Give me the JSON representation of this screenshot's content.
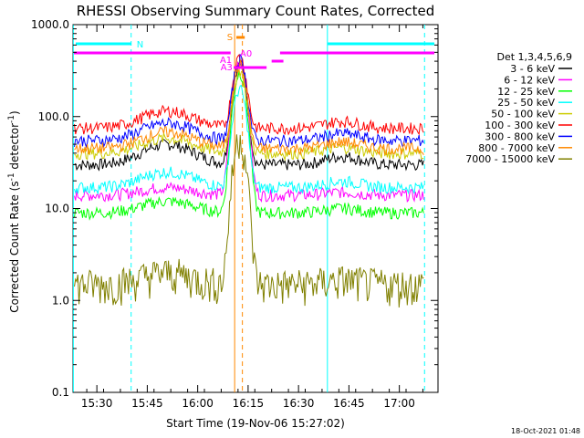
{
  "chart_data": {
    "type": "line",
    "title": "RHESSI Observing Summary Count Rates, Corrected",
    "xlabel": "Start Time (19-Nov-06 15:27:02)",
    "ylabel_main": "Corrected Count Rate (s",
    "ylabel_exp": "-1",
    "ylabel_end": " detector",
    "ylabel_exp2": "-1",
    "ylabel_close": ")",
    "yscale": "log",
    "ylim": [
      0.1,
      1000.0
    ],
    "xlim_minutes": [
      -4.1,
      104.5
    ],
    "x_start_time": "15:27:02",
    "ytick_labels": [
      "0.1",
      "1.0",
      "10.0",
      "100.0",
      "1000.0"
    ],
    "ytick_values": [
      0.1,
      1.0,
      10.0,
      100.0,
      1000.0
    ],
    "xtick_labels": [
      "15:30",
      "15:45",
      "16:00",
      "16:15",
      "16:30",
      "16:45",
      "17:00"
    ],
    "xtick_values_min": [
      3,
      18,
      33,
      48,
      63,
      78,
      93
    ],
    "legend_header": "Det 1,3,4,5,6,9",
    "series": [
      {
        "name": "3 - 6 keV",
        "color": "#000000",
        "base": 30,
        "bump": 50,
        "peak": 380
      },
      {
        "name": "6 - 12 keV",
        "color": "#ff00ff",
        "base": 14,
        "bump": 17,
        "peak": 400
      },
      {
        "name": "12 - 25 keV",
        "color": "#00ff00",
        "base": 9,
        "bump": 12,
        "peak": 300
      },
      {
        "name": "25 - 50 keV",
        "color": "#00ffff",
        "base": 17,
        "bump": 25,
        "peak": 200
      },
      {
        "name": "50 - 100 keV",
        "color": "#cccc00",
        "base": 40,
        "bump": 58,
        "peak": 320
      },
      {
        "name": "100 - 300 keV",
        "color": "#ff0000",
        "base": 75,
        "bump": 115,
        "peak": 450
      },
      {
        "name": "300 - 800 keV",
        "color": "#0000ff",
        "base": 55,
        "bump": 85,
        "peak": 420
      },
      {
        "name": "800 - 7000 keV",
        "color": "#ff8800",
        "base": 45,
        "bump": 68,
        "peak": 360
      },
      {
        "name": "7000 - 15000 keV",
        "color": "#808000",
        "base": 1.5,
        "bump": 2.0,
        "peak": 60
      }
    ],
    "flags": [
      {
        "label": "N",
        "color": "#00ffff"
      },
      {
        "label": "S",
        "color": "#ff8800"
      },
      {
        "label": "A0",
        "color": "#ff00ff"
      },
      {
        "label": "A1",
        "color": "#ff00ff"
      },
      {
        "label": "A3",
        "color": "#ff00ff"
      }
    ]
  },
  "timestamp": "18-Oct-2021 01:48"
}
